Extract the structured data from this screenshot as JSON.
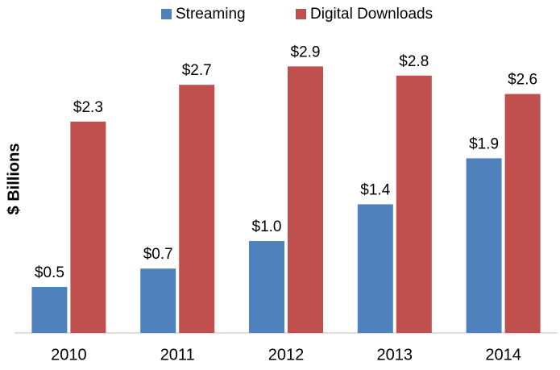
{
  "chart_data": {
    "type": "bar",
    "y_label": "$ Billions",
    "categories": [
      "2010",
      "2011",
      "2012",
      "2013",
      "2014"
    ],
    "series": [
      {
        "name": "Streaming",
        "color": "#4f81bd",
        "values": [
          0.5,
          0.7,
          1.0,
          1.4,
          1.9
        ],
        "value_labels": [
          "$0.5",
          "$0.7",
          "$1.0",
          "$1.4",
          "$1.9"
        ]
      },
      {
        "name": "Digital Downloads",
        "color": "#c0504d",
        "values": [
          2.3,
          2.7,
          2.9,
          2.8,
          2.6
        ],
        "value_labels": [
          "$2.3",
          "$2.7",
          "$2.9",
          "$2.8",
          "$2.6"
        ]
      }
    ],
    "ylim": [
      0,
      3.5
    ],
    "legend": "top"
  }
}
